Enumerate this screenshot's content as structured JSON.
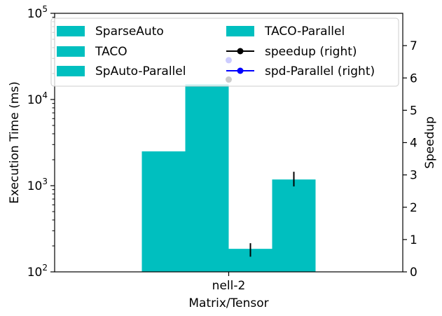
{
  "chart_data": {
    "type": "bar",
    "xlabel": "Matrix/Tensor",
    "ylabel_left": "Execution Time (ms)",
    "ylabel_right": "Speedup",
    "categories": [
      "nell-2"
    ],
    "y_left_scale": "log",
    "y_left_lim": [
      100,
      100000
    ],
    "y_left_ticks": [
      {
        "value": 100,
        "base": "10",
        "exp": "2"
      },
      {
        "value": 1000,
        "base": "10",
        "exp": "3"
      },
      {
        "value": 10000,
        "base": "10",
        "exp": "4"
      },
      {
        "value": 100000,
        "base": "10",
        "exp": "5"
      }
    ],
    "y_right_lim": [
      0,
      8
    ],
    "y_right_ticks": [
      "0",
      "1",
      "2",
      "3",
      "4",
      "5",
      "6",
      "7"
    ],
    "series": [
      {
        "name": "SparseAuto",
        "values": [
          2500
        ],
        "color": "#00bfbf"
      },
      {
        "name": "TACO",
        "values": [
          15000
        ],
        "color": "#00bfbf"
      },
      {
        "name": "SpAuto-Parallel",
        "values": [
          185
        ],
        "error": [
          150,
          215
        ],
        "color": "#00bfbf"
      },
      {
        "name": "TACO-Parallel",
        "values": [
          1180
        ],
        "error": [
          980,
          1450
        ],
        "color": "#00bfbf"
      }
    ],
    "line_series": [
      {
        "name": "speedup (right)",
        "axis": "right",
        "values": [
          5.95
        ],
        "color": "#000000"
      },
      {
        "name": "spd-Parallel (right)",
        "axis": "right",
        "values": [
          6.55
        ],
        "color": "#0000ff"
      }
    ],
    "legend": {
      "placement": "top",
      "bar_entries": [
        "SparseAuto",
        "TACO",
        "SpAuto-Parallel",
        "TACO-Parallel"
      ],
      "line_entries": [
        "speedup (right)",
        "spd-Parallel (right)"
      ]
    }
  }
}
